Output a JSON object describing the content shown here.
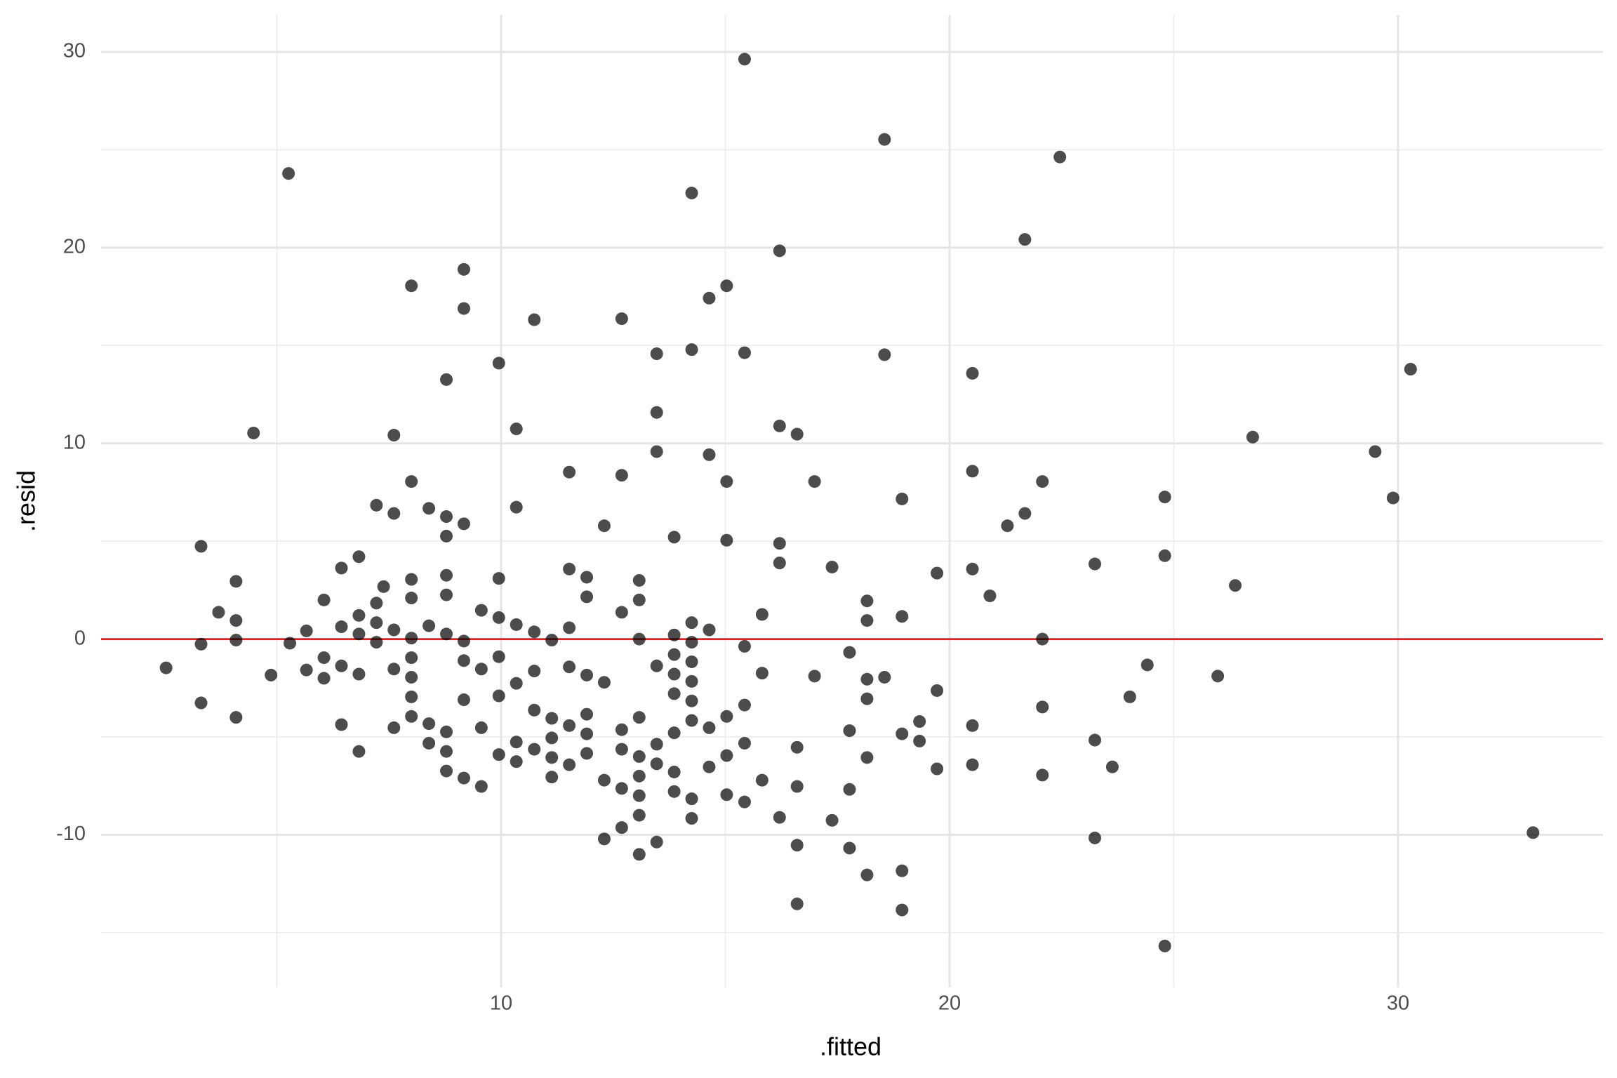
{
  "chart_data": {
    "type": "scatter",
    "x_label": ".fitted",
    "y_label": ".resid",
    "xlim": [
      1.08,
      34.57
    ],
    "ylim": [
      -17.8,
      31.9
    ],
    "xticks": [
      10,
      20,
      30
    ],
    "yticks": [
      -10,
      0,
      10,
      20,
      30
    ],
    "xminor": [
      5,
      15,
      25
    ],
    "yminor": [
      -15,
      -5,
      5,
      15,
      25
    ],
    "grid": true,
    "color": "#000000",
    "point_alpha": 0.7,
    "hline": 0,
    "hline_color": "#ff0000",
    "x": [
      2.53,
      3.31,
      3.31,
      3.31,
      3.7,
      4.09,
      4.09,
      4.09,
      4.09,
      4.48,
      4.87,
      5.26,
      5.29,
      5.66,
      5.66,
      6.05,
      6.05,
      6.05,
      6.44,
      6.44,
      6.44,
      6.44,
      6.83,
      6.83,
      6.83,
      6.83,
      6.83,
      7.22,
      7.22,
      7.22,
      7.22,
      7.38,
      7.61,
      7.61,
      7.61,
      7.61,
      7.61,
      8.0,
      8.0,
      8.0,
      8.0,
      8.0,
      8.0,
      8.0,
      8.0,
      8.0,
      8.39,
      8.39,
      8.39,
      8.39,
      8.78,
      8.78,
      8.78,
      8.78,
      8.78,
      8.78,
      8.78,
      8.78,
      8.78,
      9.17,
      9.17,
      9.17,
      9.17,
      9.17,
      9.17,
      9.17,
      9.56,
      9.56,
      9.56,
      9.56,
      9.95,
      9.95,
      9.95,
      9.95,
      9.95,
      9.95,
      10.34,
      10.34,
      10.34,
      10.34,
      10.34,
      10.34,
      10.74,
      10.74,
      10.74,
      10.74,
      10.74,
      11.13,
      11.13,
      11.13,
      11.13,
      11.13,
      11.52,
      11.52,
      11.52,
      11.52,
      11.52,
      11.52,
      11.91,
      11.91,
      11.91,
      11.91,
      11.91,
      11.91,
      12.3,
      12.3,
      12.3,
      12.3,
      12.69,
      12.69,
      12.69,
      12.69,
      12.69,
      12.69,
      12.69,
      13.08,
      13.08,
      13.08,
      13.08,
      13.08,
      13.08,
      13.08,
      13.08,
      13.08,
      13.47,
      13.47,
      13.47,
      13.47,
      13.47,
      13.47,
      13.47,
      13.86,
      13.86,
      13.86,
      13.86,
      13.86,
      13.86,
      13.86,
      13.86,
      14.25,
      14.25,
      14.25,
      14.25,
      14.25,
      14.25,
      14.25,
      14.25,
      14.25,
      14.25,
      14.64,
      14.64,
      14.64,
      14.64,
      14.64,
      15.03,
      15.03,
      15.03,
      15.03,
      15.03,
      15.03,
      15.43,
      15.43,
      15.43,
      15.43,
      15.43,
      15.43,
      15.82,
      15.82,
      15.82,
      16.21,
      16.21,
      16.21,
      16.21,
      16.21,
      16.6,
      16.6,
      16.6,
      16.6,
      16.6,
      16.99,
      16.99,
      17.38,
      17.38,
      17.77,
      17.77,
      17.77,
      17.77,
      18.16,
      18.16,
      18.16,
      18.16,
      18.16,
      18.16,
      18.55,
      18.55,
      18.55,
      18.94,
      18.94,
      18.94,
      18.94,
      18.94,
      19.33,
      19.33,
      19.72,
      19.72,
      19.72,
      20.51,
      20.51,
      20.51,
      20.51,
      20.51,
      20.9,
      21.29,
      21.68,
      21.68,
      22.07,
      22.07,
      22.07,
      22.07,
      22.46,
      23.24,
      23.24,
      23.24,
      23.63,
      24.02,
      24.41,
      24.8,
      24.8,
      24.8,
      25.98,
      26.37,
      26.76,
      29.49,
      29.89,
      30.28,
      33.01
    ],
    "values": [
      -1.47,
      4.74,
      -0.26,
      -3.26,
      1.37,
      2.95,
      0.95,
      -0.05,
      -4.0,
      10.53,
      -1.84,
      23.79,
      -0.21,
      0.42,
      -1.58,
      2.0,
      -0.95,
      -2.0,
      3.63,
      0.63,
      -1.37,
      -4.37,
      4.21,
      1.21,
      0.26,
      -1.79,
      -5.74,
      6.84,
      1.84,
      0.84,
      -0.16,
      2.68,
      10.42,
      6.42,
      0.47,
      -1.53,
      -4.53,
      18.05,
      8.05,
      3.05,
      2.1,
      0.05,
      -0.95,
      -1.95,
      -2.95,
      -3.95,
      6.68,
      0.68,
      -4.32,
      -5.32,
      13.26,
      6.26,
      5.26,
      3.26,
      2.26,
      0.26,
      -4.74,
      -5.74,
      -6.74,
      18.89,
      16.89,
      5.89,
      -0.1,
      -1.1,
      -3.1,
      -7.1,
      1.47,
      -1.53,
      -4.53,
      -7.53,
      14.1,
      3.1,
      1.1,
      -0.9,
      -2.9,
      -5.9,
      10.74,
      6.74,
      0.74,
      -2.26,
      -5.26,
      -6.26,
      16.32,
      0.37,
      -1.63,
      -3.63,
      -5.63,
      -0.05,
      -4.05,
      -5.05,
      -6.05,
      -7.05,
      8.53,
      3.58,
      0.58,
      -1.42,
      -4.42,
      -6.42,
      3.16,
      2.16,
      -1.84,
      -3.84,
      -4.84,
      -5.84,
      5.79,
      -2.21,
      -7.21,
      -10.21,
      16.37,
      8.37,
      1.37,
      -4.63,
      -5.63,
      -7.63,
      -9.63,
      3.0,
      2.0,
      0,
      -4.0,
      -6.0,
      -7.0,
      -8.0,
      -9.0,
      -11.0,
      14.58,
      11.58,
      9.58,
      -1.37,
      -5.37,
      -6.37,
      -10.37,
      5.21,
      0.21,
      -0.79,
      -1.79,
      -2.79,
      -4.79,
      -6.79,
      -7.79,
      22.79,
      14.79,
      0.84,
      -0.16,
      -1.16,
      -2.16,
      -3.16,
      -4.16,
      -8.16,
      -9.16,
      17.42,
      9.42,
      0.47,
      -4.53,
      -6.53,
      18.05,
      8.05,
      5.05,
      -3.95,
      -5.95,
      -7.95,
      29.63,
      14.63,
      -0.37,
      -3.37,
      -5.32,
      -8.32,
      1.26,
      -1.74,
      -7.21,
      19.84,
      10.89,
      4.89,
      3.89,
      -9.11,
      10.47,
      -5.53,
      -7.53,
      -10.53,
      -13.53,
      8.05,
      -1.89,
      3.68,
      -9.26,
      -0.68,
      -4.68,
      -7.68,
      -10.68,
      1.95,
      0.95,
      -2.05,
      -3.05,
      -6.05,
      -12.05,
      25.53,
      14.53,
      -1.95,
      7.16,
      1.16,
      -4.84,
      -11.84,
      -13.84,
      -4.21,
      -5.21,
      3.37,
      -2.63,
      -6.63,
      13.58,
      8.58,
      3.58,
      -4.42,
      -6.42,
      2.21,
      5.79,
      6.42,
      20.42,
      8.05,
      0,
      -3.47,
      -6.95,
      24.63,
      3.84,
      -5.16,
      -10.16,
      -6.53,
      -2.95,
      -1.32,
      7.26,
      4.26,
      -15.68,
      -1.89,
      2.74,
      10.32,
      9.58,
      7.21,
      13.79,
      -9.89
    ]
  }
}
